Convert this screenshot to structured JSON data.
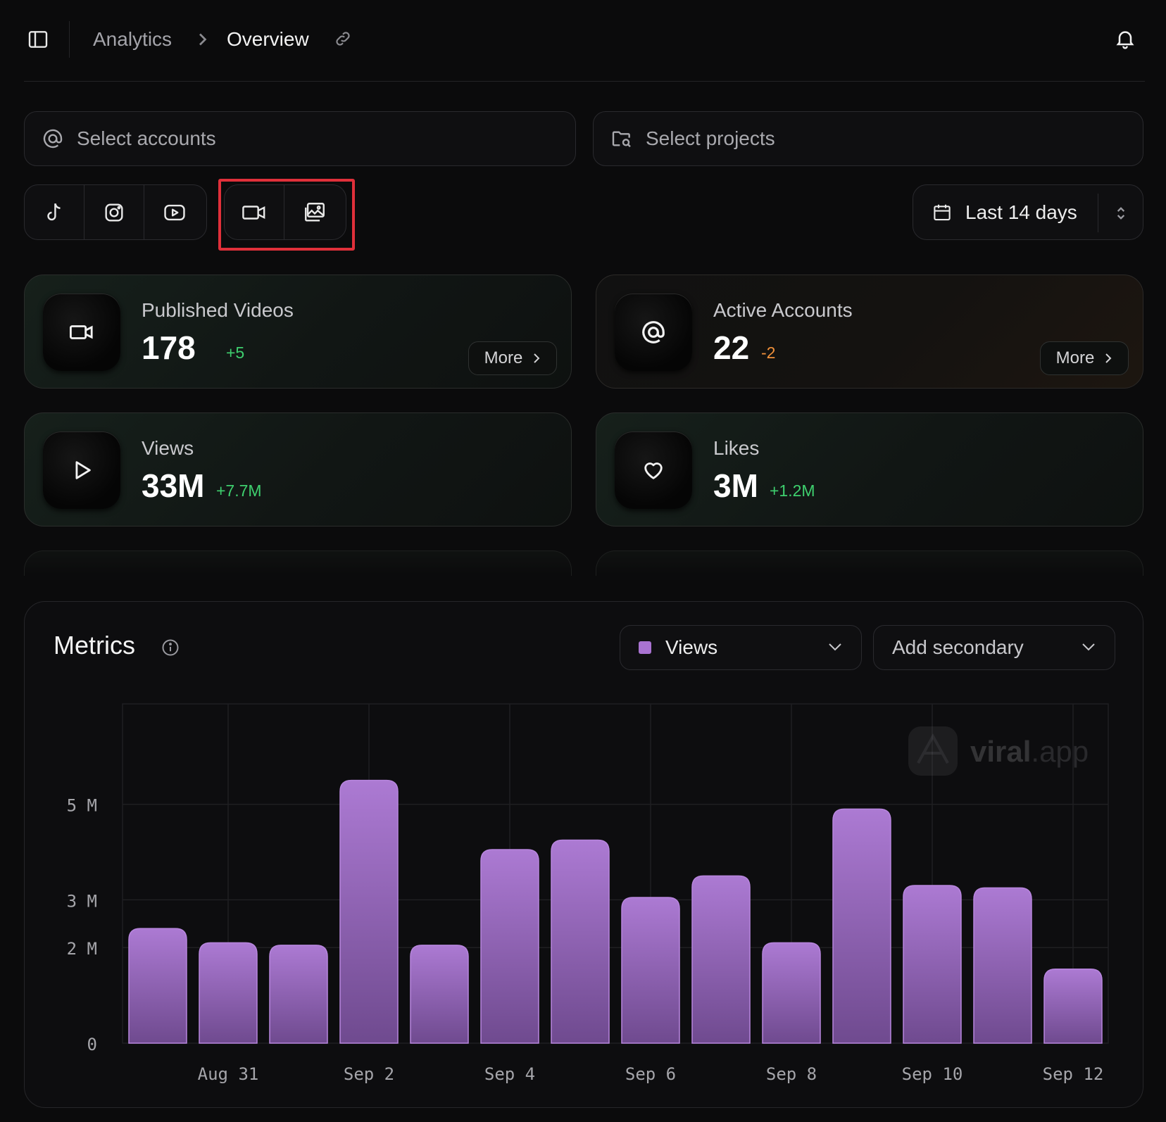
{
  "header": {
    "breadcrumb_parent": "Analytics",
    "breadcrumb_current": "Overview"
  },
  "filters": {
    "accounts_placeholder": "Select accounts",
    "projects_placeholder": "Select projects",
    "date_range": "Last 14 days",
    "platforms": [
      "tiktok-icon",
      "instagram-icon",
      "youtube-icon"
    ],
    "content_types": [
      "video-icon",
      "image-gallery-icon"
    ]
  },
  "stats": [
    {
      "title": "Published Videos",
      "value": "178",
      "delta": "+5",
      "delta_color": "#3ecf6e",
      "icon": "video-icon",
      "more": "More"
    },
    {
      "title": "Active Accounts",
      "value": "22",
      "delta": "-2",
      "delta_color": "#f0903a",
      "icon": "at-icon",
      "more": "More"
    },
    {
      "title": "Views",
      "value": "33M",
      "delta": "+7.7M",
      "delta_color": "#3ecf6e",
      "icon": "play-icon"
    },
    {
      "title": "Likes",
      "value": "3M",
      "delta": "+1.2M",
      "delta_color": "#3ecf6e",
      "icon": "heart-icon"
    }
  ],
  "metrics": {
    "title": "Metrics",
    "primary_metric": "Views",
    "primary_color": "#a973d1",
    "secondary_placeholder": "Add secondary",
    "watermark_a": "viral",
    "watermark_b": ".app"
  },
  "chart_data": {
    "type": "bar",
    "categories": [
      "Aug 30",
      "Aug 31",
      "Sep 1",
      "Sep 2",
      "Sep 3",
      "Sep 4",
      "Sep 5",
      "Sep 6",
      "Sep 7",
      "Sep 8",
      "Sep 9",
      "Sep 10",
      "Sep 11",
      "Sep 12"
    ],
    "x_tick_labels": [
      "Aug 31",
      "Sep 2",
      "Sep 4",
      "Sep 6",
      "Sep 8",
      "Sep 10",
      "Sep 12"
    ],
    "values": [
      2.4,
      2.1,
      2.05,
      5.5,
      2.05,
      4.05,
      4.25,
      3.05,
      3.5,
      2.1,
      4.9,
      3.3,
      3.25,
      1.55
    ],
    "y_ticks": [
      {
        "v": 0,
        "label": "0"
      },
      {
        "v": 2,
        "label": "2 M"
      },
      {
        "v": 3,
        "label": "3 M"
      },
      {
        "v": 5,
        "label": "5 M"
      }
    ],
    "ylim": [
      0,
      7.1
    ],
    "grid": true
  }
}
